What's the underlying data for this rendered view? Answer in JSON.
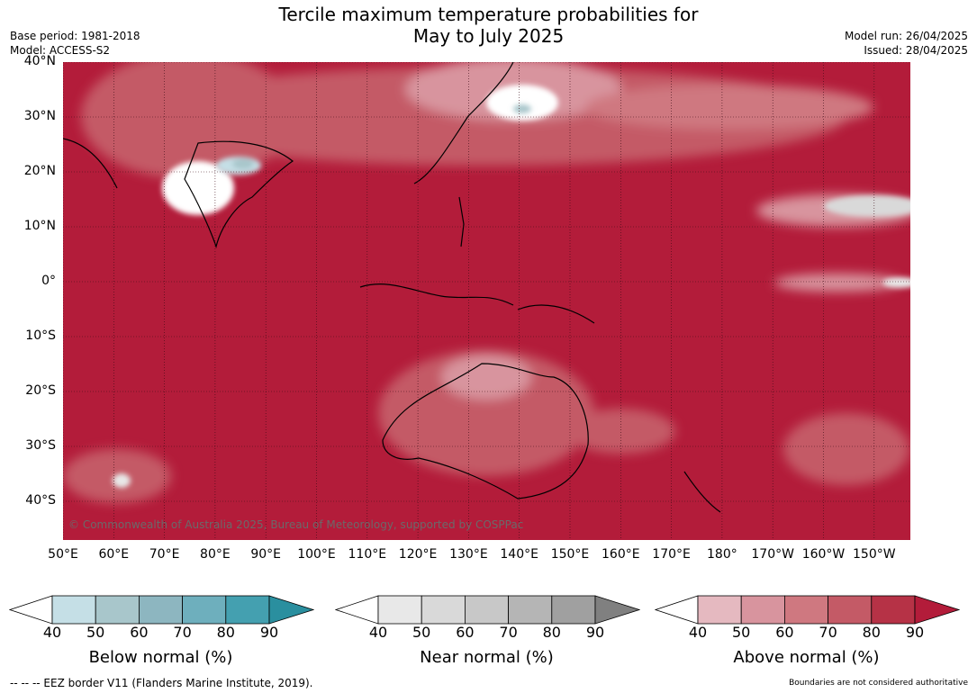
{
  "title_line1": "Tercile maximum temperature probabilities for",
  "title_line2": "May to July 2025",
  "meta_left": {
    "base_period": "Base period: 1981-2018",
    "model": "Model: ACCESS-S2"
  },
  "meta_right": {
    "model_run": "Model run: 26/04/2025",
    "issued": "Issued: 28/04/2025"
  },
  "map": {
    "latitude_labels": [
      "40°N",
      "30°N",
      "20°N",
      "10°N",
      "0°",
      "10°S",
      "20°S",
      "30°S",
      "40°S"
    ],
    "longitude_labels": [
      "50°E",
      "60°E",
      "70°E",
      "80°E",
      "90°E",
      "100°E",
      "110°E",
      "120°E",
      "130°E",
      "140°E",
      "150°E",
      "160°E",
      "170°E",
      "180°",
      "170°W",
      "160°W",
      "150°W"
    ],
    "copyright": "© Commonwealth of Australia 2025, Bureau of Meteorology, supported by COSPPac",
    "dominant_color": "#b31c3a"
  },
  "colorbars": [
    {
      "title": "Below normal (%)",
      "ticks": [
        "40",
        "50",
        "60",
        "70",
        "80",
        "90"
      ],
      "colors": [
        "#ffffff",
        "#c5dfe6",
        "#a8c6cb",
        "#8db6c0",
        "#6eafbd",
        "#44a0b0",
        "#2a8f9f"
      ]
    },
    {
      "title": "Near normal (%)",
      "ticks": [
        "40",
        "50",
        "60",
        "70",
        "80",
        "90"
      ],
      "colors": [
        "#ffffff",
        "#e8e8e8",
        "#d9d9d9",
        "#c8c8c8",
        "#b5b5b5",
        "#a0a0a0",
        "#808080"
      ]
    },
    {
      "title": "Above normal (%)",
      "ticks": [
        "40",
        "50",
        "60",
        "70",
        "80",
        "90"
      ],
      "colors": [
        "#ffffff",
        "#e5b9c0",
        "#d8949e",
        "#cf7880",
        "#c45a66",
        "#b63246",
        "#b31c3a"
      ]
    }
  ],
  "footer": {
    "eez_note": "--  --  -- EEZ border V11 (Flanders Marine Institute, 2019).",
    "boundaries_note": "Boundaries are not considered authoritative"
  }
}
